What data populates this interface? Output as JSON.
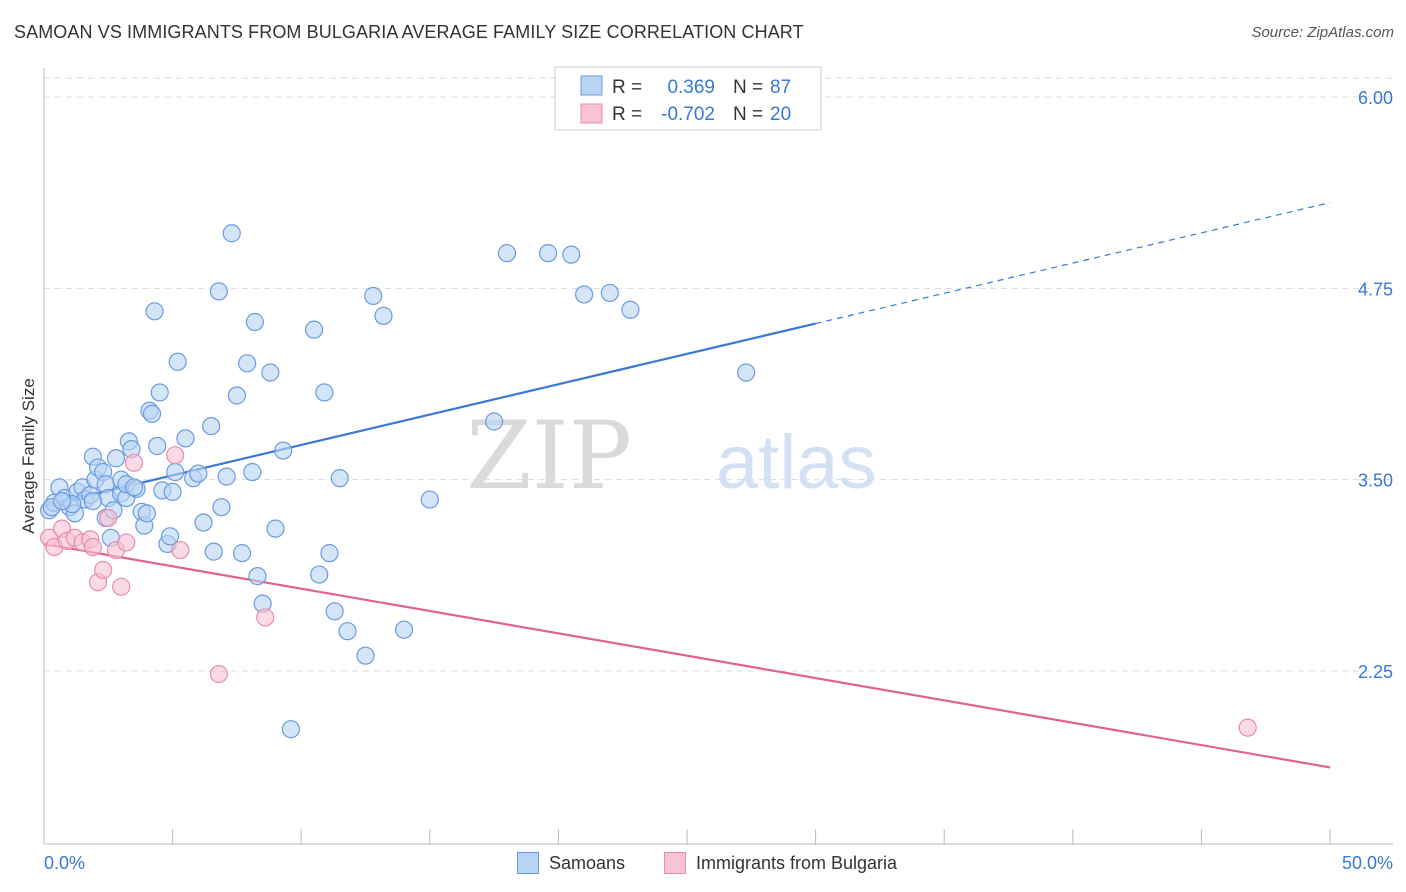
{
  "title": "SAMOAN VS IMMIGRANTS FROM BULGARIA AVERAGE FAMILY SIZE CORRELATION CHART",
  "source": "Source: ZipAtlas.com",
  "watermark": {
    "zip": "ZIP",
    "atlas": "atlas"
  },
  "colors": {
    "blue": "#3a78d6",
    "blue_fill": "#b9d3f3",
    "blue_stroke": "#6a9be0",
    "pink": "#e2628f",
    "pink_fill": "#f7c3d3",
    "pink_stroke": "#ea8cac",
    "grid": "#d9d9d9",
    "tick_label": "#3a78d6"
  },
  "legend_top": {
    "rows": [
      {
        "r_label": "R =",
        "r_value": "0.369",
        "n_label": "N =",
        "n_value": "87"
      },
      {
        "r_label": "R =",
        "r_value": "-0.702",
        "n_label": "N =",
        "n_value": "20"
      }
    ]
  },
  "legend_bottom": {
    "items": [
      "Samoans",
      "Immigrants from Bulgaria"
    ]
  },
  "chart_data": {
    "type": "scatter",
    "title": "SAMOAN VS IMMIGRANTS FROM BULGARIA AVERAGE FAMILY SIZE CORRELATION CHART",
    "xlabel": "",
    "ylabel": "Average Family Size",
    "xlim": [
      0,
      50
    ],
    "ylim": [
      1.0,
      6.2
    ],
    "x_tick_labels": [
      "0.0%",
      "50.0%"
    ],
    "y_ticks": [
      2.25,
      3.5,
      4.75,
      6.0
    ],
    "y_tick_labels": [
      "2.25",
      "3.50",
      "4.75",
      "6.00"
    ],
    "grid": true,
    "legend_position": "top-center",
    "series": [
      {
        "name": "Samoans",
        "color": "#3a78d6",
        "trend": {
          "x": [
            0,
            30
          ],
          "y": [
            3.33,
            4.52
          ],
          "dashed_extension_to": [
            50,
            5.31
          ]
        },
        "points": [
          [
            0.2,
            3.3
          ],
          [
            0.4,
            3.35
          ],
          [
            0.6,
            3.45
          ],
          [
            0.8,
            3.38
          ],
          [
            1.0,
            3.32
          ],
          [
            1.2,
            3.28
          ],
          [
            1.3,
            3.42
          ],
          [
            1.5,
            3.45
          ],
          [
            1.6,
            3.37
          ],
          [
            1.8,
            3.4
          ],
          [
            1.9,
            3.65
          ],
          [
            2.0,
            3.5
          ],
          [
            2.1,
            3.58
          ],
          [
            2.3,
            3.55
          ],
          [
            2.4,
            3.47
          ],
          [
            2.4,
            3.25
          ],
          [
            2.5,
            3.38
          ],
          [
            2.6,
            3.12
          ],
          [
            2.7,
            3.3
          ],
          [
            2.8,
            3.64
          ],
          [
            3.0,
            3.41
          ],
          [
            3.0,
            3.5
          ],
          [
            3.2,
            3.38
          ],
          [
            3.2,
            3.47
          ],
          [
            3.3,
            3.75
          ],
          [
            3.4,
            3.7
          ],
          [
            3.6,
            3.44
          ],
          [
            3.8,
            3.29
          ],
          [
            3.9,
            3.2
          ],
          [
            4.0,
            3.28
          ],
          [
            4.1,
            3.95
          ],
          [
            4.2,
            3.93
          ],
          [
            4.3,
            4.6
          ],
          [
            4.4,
            3.72
          ],
          [
            4.5,
            4.07
          ],
          [
            4.6,
            3.43
          ],
          [
            4.8,
            3.08
          ],
          [
            4.9,
            3.13
          ],
          [
            5.0,
            3.42
          ],
          [
            5.1,
            3.55
          ],
          [
            5.2,
            4.27
          ],
          [
            5.5,
            3.77
          ],
          [
            5.8,
            3.51
          ],
          [
            6.0,
            3.54
          ],
          [
            6.2,
            3.22
          ],
          [
            6.5,
            3.85
          ],
          [
            6.6,
            3.03
          ],
          [
            6.8,
            4.73
          ],
          [
            6.9,
            3.32
          ],
          [
            7.1,
            3.52
          ],
          [
            7.3,
            5.11
          ],
          [
            7.5,
            4.05
          ],
          [
            7.7,
            3.02
          ],
          [
            7.9,
            4.26
          ],
          [
            8.1,
            3.55
          ],
          [
            8.2,
            4.53
          ],
          [
            8.3,
            2.87
          ],
          [
            8.5,
            2.69
          ],
          [
            8.8,
            4.2
          ],
          [
            9.0,
            3.18
          ],
          [
            9.3,
            3.69
          ],
          [
            9.6,
            1.87
          ],
          [
            10.5,
            4.48
          ],
          [
            10.7,
            2.88
          ],
          [
            10.9,
            4.07
          ],
          [
            11.1,
            3.02
          ],
          [
            11.3,
            2.64
          ],
          [
            11.5,
            3.51
          ],
          [
            11.8,
            2.51
          ],
          [
            12.5,
            2.35
          ],
          [
            12.8,
            4.7
          ],
          [
            13.2,
            4.57
          ],
          [
            14.0,
            2.52
          ],
          [
            15.0,
            3.37
          ],
          [
            17.5,
            3.88
          ],
          [
            18.0,
            4.98
          ],
          [
            19.6,
            4.98
          ],
          [
            20.5,
            4.97
          ],
          [
            21.0,
            4.71
          ],
          [
            22.0,
            4.72
          ],
          [
            22.8,
            4.61
          ],
          [
            27.3,
            4.2
          ],
          [
            0.3,
            3.32
          ],
          [
            1.1,
            3.34
          ],
          [
            1.9,
            3.36
          ],
          [
            3.5,
            3.45
          ],
          [
            0.7,
            3.36
          ]
        ]
      },
      {
        "name": "Immigrants from Bulgaria",
        "color": "#e2628f",
        "trend": {
          "x": [
            0,
            50
          ],
          "y": [
            3.08,
            1.62
          ]
        },
        "points": [
          [
            0.2,
            3.12
          ],
          [
            0.4,
            3.06
          ],
          [
            0.7,
            3.18
          ],
          [
            0.9,
            3.1
          ],
          [
            1.2,
            3.12
          ],
          [
            1.5,
            3.09
          ],
          [
            1.8,
            3.11
          ],
          [
            1.9,
            3.06
          ],
          [
            2.1,
            2.83
          ],
          [
            2.3,
            2.91
          ],
          [
            2.5,
            3.25
          ],
          [
            2.8,
            3.04
          ],
          [
            3.0,
            2.8
          ],
          [
            3.2,
            3.09
          ],
          [
            3.5,
            3.61
          ],
          [
            5.1,
            3.66
          ],
          [
            5.3,
            3.04
          ],
          [
            6.8,
            2.23
          ],
          [
            8.6,
            2.6
          ],
          [
            46.8,
            1.88
          ]
        ]
      }
    ]
  }
}
